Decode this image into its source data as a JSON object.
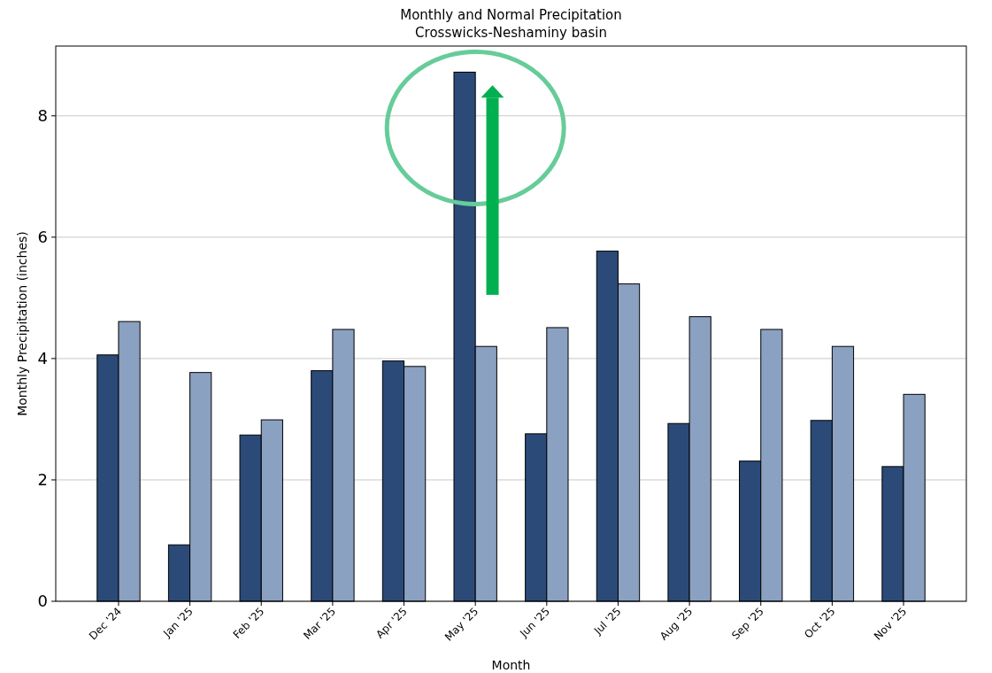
{
  "chart_data": {
    "type": "bar",
    "title": "Monthly and Normal Precipitation",
    "subtitle": "Crosswicks-Neshaminy basin",
    "xlabel": "Month",
    "ylabel": "Monthly Precipitation (inches)",
    "categories": [
      "Dec '24",
      "Jan '25",
      "Feb '25",
      "Mar '25",
      "Apr '25",
      "May '25",
      "Jun '25",
      "Jul '25",
      "Aug '25",
      "Sep '25",
      "Oct '25",
      "Nov '25"
    ],
    "series": [
      {
        "color": "#2b4a78",
        "values": [
          4.06,
          0.93,
          2.74,
          3.8,
          3.96,
          8.72,
          2.76,
          5.77,
          2.93,
          2.31,
          2.98,
          2.22
        ]
      },
      {
        "color": "#8aa1c1",
        "values": [
          4.61,
          3.77,
          2.99,
          4.48,
          3.87,
          4.2,
          4.51,
          5.23,
          4.69,
          4.48,
          4.2,
          3.41
        ]
      }
    ],
    "ylim": [
      0,
      9.15
    ],
    "yticks": [
      0,
      2,
      4,
      6,
      8
    ],
    "grid": "y"
  }
}
